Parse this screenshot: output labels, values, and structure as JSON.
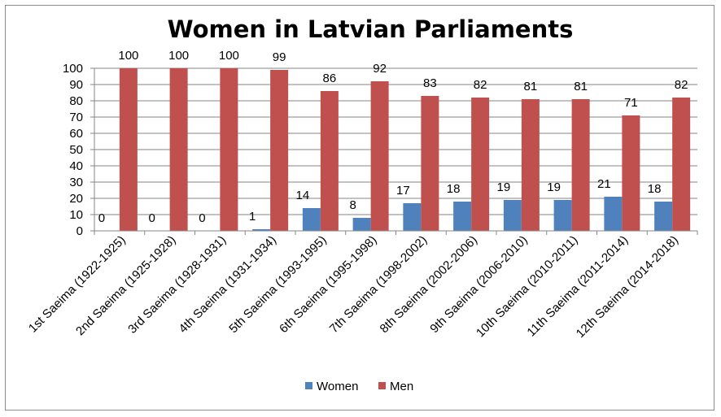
{
  "chart_data": {
    "type": "bar",
    "title": "Women in Latvian Parliaments",
    "xlabel": "",
    "ylabel": "",
    "ylim": [
      0,
      100
    ],
    "yticks": [
      0,
      10,
      20,
      30,
      40,
      50,
      60,
      70,
      80,
      90,
      100
    ],
    "grid": true,
    "legend_position": "bottom",
    "categories": [
      "1st Saeima (1922-1925)",
      "2nd Saeima (1925-1928)",
      "3rd Saeima (1928-1931)",
      "4th Saeima (1931-1934)",
      "5th Saeima (1993-1995)",
      "6th Saeima (1995-1998)",
      "7th Saeima (1998-2002)",
      "8th Saeima (2002-2006)",
      "9th Saeima (2006-2010)",
      "10th Saeima (2010-2011)",
      "11th Saeima (2011-2014)",
      "12th Saeima (2014-2018)"
    ],
    "series": [
      {
        "name": "Women",
        "color": "#4f81bd",
        "values": [
          0,
          0,
          0,
          1,
          14,
          8,
          17,
          18,
          19,
          19,
          21,
          18
        ]
      },
      {
        "name": "Men",
        "color": "#c0504d",
        "values": [
          100,
          100,
          100,
          99,
          86,
          92,
          83,
          82,
          81,
          81,
          71,
          82
        ]
      }
    ]
  }
}
